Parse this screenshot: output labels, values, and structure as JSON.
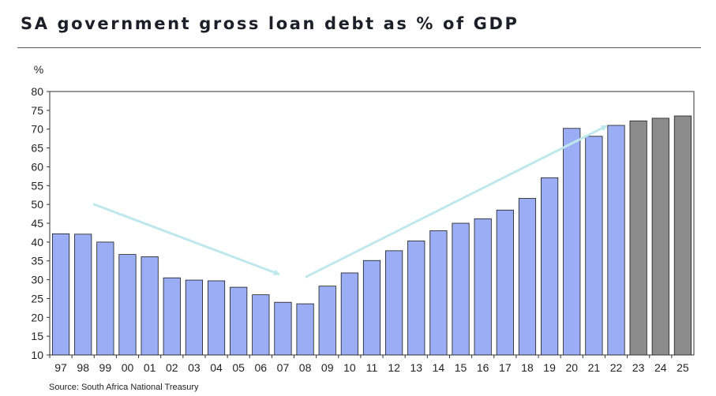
{
  "title": "SA government gross loan debt as % of GDP",
  "source": "Source: South Africa National Treasury",
  "colors": {
    "actual": "#9aadf5",
    "projected": "#8c8c8c",
    "arrow": "#bfe8ec"
  },
  "chart_data": {
    "type": "bar",
    "ylabel": "%",
    "ylim": [
      10,
      80
    ],
    "yticks": [
      10,
      15,
      20,
      25,
      30,
      35,
      40,
      45,
      50,
      55,
      60,
      65,
      70,
      75,
      80
    ],
    "grid": false,
    "categories": [
      "97",
      "98",
      "99",
      "00",
      "01",
      "02",
      "03",
      "04",
      "05",
      "06",
      "07",
      "08",
      "09",
      "10",
      "11",
      "12",
      "13",
      "14",
      "15",
      "16",
      "17",
      "18",
      "19",
      "20",
      "21",
      "22",
      "23",
      "24",
      "25"
    ],
    "values": [
      42.2,
      42.1,
      40.0,
      36.7,
      36.1,
      30.5,
      29.9,
      29.7,
      28.0,
      26.0,
      24.0,
      23.6,
      28.3,
      31.8,
      35.1,
      37.7,
      40.3,
      43.0,
      45.0,
      46.2,
      48.5,
      51.6,
      57.1,
      70.2,
      68.1,
      71.0,
      72.2,
      72.9,
      73.5
    ],
    "projected_from": "23"
  }
}
